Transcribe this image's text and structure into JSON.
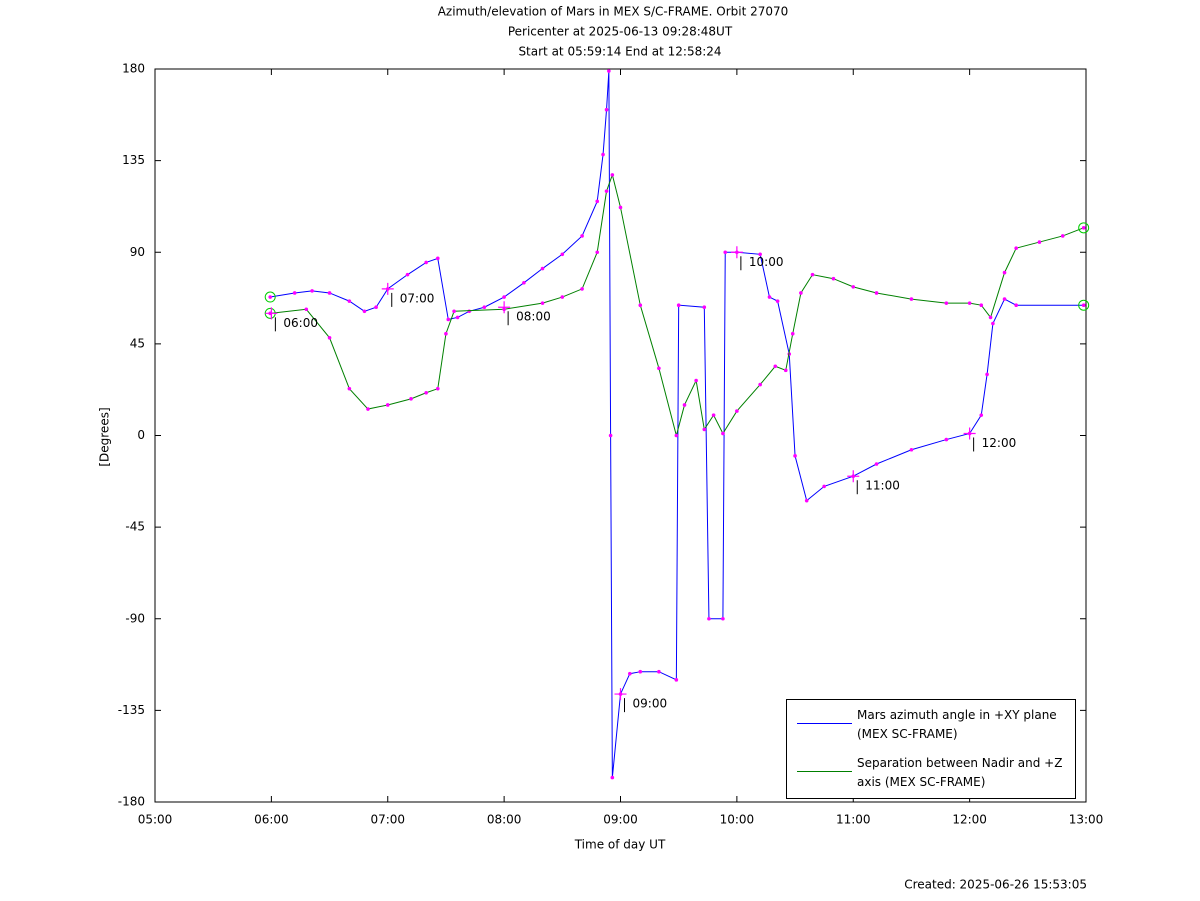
{
  "chart_data": {
    "type": "line",
    "title": "Azimuth/elevation of Mars in MEX S/C-FRAME.  Orbit 27070",
    "subtitle": "Pericenter at 2025-06-13 09:28:48UT",
    "subtitle2": "Start at 05:59:14 End at 12:58:24",
    "xlabel": "Time of day UT",
    "ylabel": "[Degrees]",
    "footer": "Created: 2025-06-26 15:53:05",
    "xlim": [
      5,
      13
    ],
    "xticks": [
      {
        "value": 5,
        "label": "05:00"
      },
      {
        "value": 6,
        "label": "06:00"
      },
      {
        "value": 7,
        "label": "07:00"
      },
      {
        "value": 8,
        "label": "08:00"
      },
      {
        "value": 9,
        "label": "09:00"
      },
      {
        "value": 10,
        "label": "10:00"
      },
      {
        "value": 11,
        "label": "11:00"
      },
      {
        "value": 12,
        "label": "12:00"
      },
      {
        "value": 13,
        "label": "13:00"
      }
    ],
    "ylim": [
      -180,
      180
    ],
    "yticks": [
      -180,
      -135,
      -90,
      -45,
      0,
      45,
      90,
      135,
      180
    ],
    "legend": "lower right",
    "marker_color": "#ff00ff",
    "series": [
      {
        "name": "Mars azimuth angle in +XY plane (MEX SC-FRAME)",
        "color": "#0000ff",
        "x": [
          5.99,
          6.2,
          6.35,
          6.5,
          6.67,
          6.8,
          6.9,
          7.0,
          7.17,
          7.33,
          7.43,
          7.52,
          7.6,
          7.7,
          7.83,
          8.0,
          8.17,
          8.33,
          8.5,
          8.67,
          8.8,
          8.85,
          8.88,
          8.9,
          8.915,
          8.93,
          9.0,
          9.08,
          9.17,
          9.33,
          9.48,
          9.5,
          9.72,
          9.76,
          9.88,
          9.9,
          10.0,
          10.2,
          10.28,
          10.35,
          10.45,
          10.5,
          10.6,
          10.75,
          11.0,
          11.2,
          11.5,
          11.8,
          12.0,
          12.1,
          12.15,
          12.2,
          12.3,
          12.4,
          12.98
        ],
        "values": [
          68,
          70,
          71,
          70,
          66,
          61,
          63,
          72,
          79,
          85,
          87,
          57,
          58,
          61,
          63,
          68,
          75,
          82,
          89,
          98,
          115,
          138,
          160,
          179,
          0,
          -168,
          -127,
          -117,
          -116,
          -116,
          -120,
          64,
          63,
          -90,
          -90,
          90,
          90,
          89,
          68,
          66,
          40,
          -10,
          -32,
          -25,
          -20,
          -14,
          -7,
          -2,
          1,
          10,
          30,
          55,
          67,
          64,
          64
        ]
      },
      {
        "name": "Separation between Nadir and +Z axis (MEX SC-FRAME)",
        "color": "#008000",
        "x": [
          5.99,
          6.3,
          6.5,
          6.67,
          6.83,
          7.0,
          7.2,
          7.33,
          7.43,
          7.5,
          7.57,
          8.0,
          8.33,
          8.5,
          8.67,
          8.8,
          8.88,
          8.93,
          9.0,
          9.17,
          9.33,
          9.48,
          9.55,
          9.65,
          9.72,
          9.8,
          9.88,
          10.0,
          10.2,
          10.33,
          10.42,
          10.48,
          10.55,
          10.65,
          10.83,
          11.0,
          11.2,
          11.5,
          11.8,
          12.0,
          12.1,
          12.18,
          12.3,
          12.4,
          12.6,
          12.8,
          12.98
        ],
        "values": [
          60,
          62,
          48,
          23,
          13,
          15,
          18,
          21,
          23,
          50,
          61,
          62,
          65,
          68,
          72,
          90,
          120,
          128,
          112,
          64,
          33,
          0,
          15,
          27,
          3,
          10,
          1,
          12,
          25,
          34,
          32,
          50,
          70,
          79,
          77,
          73,
          70,
          67,
          65,
          65,
          64,
          58,
          80,
          92,
          95,
          98,
          102
        ]
      }
    ],
    "annotations": [
      {
        "label": "06:00",
        "x": 6,
        "y": 60
      },
      {
        "label": "07:00",
        "x": 7,
        "y": 72
      },
      {
        "label": "08:00",
        "x": 8,
        "y": 63
      },
      {
        "label": "09:00",
        "x": 9,
        "y": -127
      },
      {
        "label": "10:00",
        "x": 10,
        "y": 90
      },
      {
        "label": "11:00",
        "x": 11,
        "y": -20
      },
      {
        "label": "12:00",
        "x": 12,
        "y": 1
      }
    ]
  }
}
